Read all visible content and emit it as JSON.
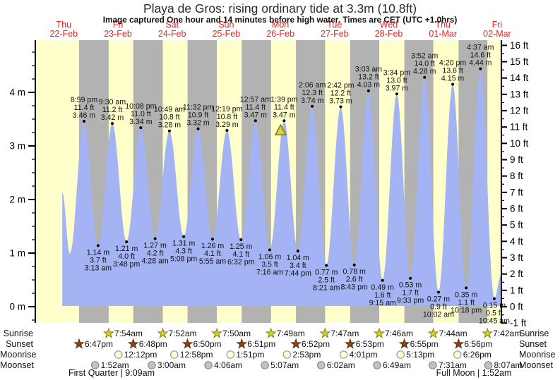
{
  "header": {
    "title": "Playa de Gros: rising ordinary tide at 3.3m (10.8ft)",
    "subtitle": "Image captured One hour and 14 minutes before high water. Times are CET (UTC +1.0hrs)"
  },
  "colors": {
    "background": "#ffffff",
    "day_band": "#ffffcc",
    "night_band": "#b2b2b2",
    "tide_fill": "#a3b3f3",
    "day_label_red": "#ee2222",
    "axis_black": "#000000",
    "marker_fill": "#d4d63c",
    "marker_stroke": "#7c7c00",
    "sunrise_star_fill": "#d2d22a",
    "sunrise_star_stroke": "#84840a",
    "sunset_star_fill": "#8b4513",
    "sunset_star_stroke": "#5c2d0a",
    "moonrise_circle_fill": "#ffffd6",
    "moonrise_circle_stroke": "#999999",
    "moonset_circle_fill": "#c2c2c2",
    "moonset_circle_stroke": "#8c8c8c"
  },
  "days": [
    {
      "name": "Thu",
      "date": "22-Feb"
    },
    {
      "name": "Fri",
      "date": "23-Feb"
    },
    {
      "name": "Sat",
      "date": "24-Feb"
    },
    {
      "name": "Sun",
      "date": "25-Feb"
    },
    {
      "name": "Mon",
      "date": "26-Feb"
    },
    {
      "name": "Tue",
      "date": "27-Feb"
    },
    {
      "name": "Wed",
      "date": "28-Feb"
    },
    {
      "name": "Thu",
      "date": "01-Mar"
    },
    {
      "name": "Fri",
      "date": "02-Mar"
    }
  ],
  "axes": {
    "left_unit": "m",
    "right_unit": "ft",
    "left_labels": [
      "4 m",
      "3 m",
      "2 m",
      "1 m",
      "0 m"
    ],
    "right_labels": [
      "16 ft",
      "15 ft",
      "14 ft",
      "13 ft",
      "12 ft",
      "11 ft",
      "10 ft",
      "9 ft",
      "8 ft",
      "7 ft",
      "6 ft",
      "5 ft",
      "4 ft",
      "3 ft",
      "2 ft",
      "1 ft",
      "0 ft",
      "-1 ft"
    ]
  },
  "chart_data": {
    "type": "area",
    "title": "Playa de Gros: rising ordinary tide at 3.3m (10.8ft)",
    "x_range": "Thu 22-Feb 00:00 CET to Fri 02-Mar ~14:00 CET",
    "y_range_left_m": [
      -0.3,
      5.0
    ],
    "y_range_right_ft": [
      -1,
      16
    ],
    "grid": false,
    "legend": false,
    "tide_events": [
      {
        "day": 0,
        "time": "11:20 am",
        "h": 2.15,
        "type": "start",
        "labeled": false,
        "estimated": true
      },
      {
        "day": 0,
        "time": "2:40 pm",
        "h": 0.98,
        "type": "low",
        "labeled": false,
        "estimated": true
      },
      {
        "day": 0,
        "time": "8:59 pm",
        "m": "3.46 m",
        "ft": "11.4 ft",
        "type": "high",
        "labeled": true
      },
      {
        "day": 1,
        "time": "3:13 am",
        "m": "1.14 m",
        "ft": "3.7 ft",
        "type": "low",
        "labeled": true
      },
      {
        "day": 1,
        "time": "9:30 am",
        "m": "3.42 m",
        "ft": "11.2 ft",
        "type": "high",
        "labeled": true
      },
      {
        "day": 1,
        "time": "3:48 pm",
        "m": "1.21 m",
        "ft": "4.0 ft",
        "type": "low",
        "labeled": true
      },
      {
        "day": 1,
        "time": "10:08 pm",
        "m": "3.34 m",
        "ft": "11.0 ft",
        "type": "high",
        "labeled": true
      },
      {
        "day": 2,
        "time": "4:28 am",
        "m": "1.27 m",
        "ft": "4.2 ft",
        "type": "low",
        "labeled": true
      },
      {
        "day": 2,
        "time": "10:49 am",
        "m": "3.28 m",
        "ft": "10.8 ft",
        "type": "high",
        "labeled": true
      },
      {
        "day": 2,
        "time": "5:08 pm",
        "m": "1.31 m",
        "ft": "4.3 ft",
        "type": "low",
        "labeled": true
      },
      {
        "day": 2,
        "time": "11:32 pm",
        "m": "3.32 m",
        "ft": "10.9 ft",
        "type": "high",
        "labeled": true
      },
      {
        "day": 3,
        "time": "5:55 am",
        "m": "1.26 m",
        "ft": "4.1 ft",
        "type": "low",
        "labeled": true
      },
      {
        "day": 3,
        "time": "12:19 pm",
        "m": "3.29 m",
        "ft": "10.8 ft",
        "type": "high",
        "labeled": true
      },
      {
        "day": 3,
        "time": "6:32 pm",
        "m": "1.25 m",
        "ft": "4.1 ft",
        "type": "low",
        "labeled": true
      },
      {
        "day": 4,
        "time": "12:57 am",
        "m": "3.47 m",
        "ft": "11.4 ft",
        "type": "high",
        "labeled": true
      },
      {
        "day": 4,
        "time": "7:16 am",
        "m": "1.06 m",
        "ft": "3.5 ft",
        "type": "low",
        "labeled": true
      },
      {
        "day": 4,
        "time": "1:39 pm",
        "m": "3.47 m",
        "ft": "11.4 ft",
        "type": "high",
        "labeled": true,
        "marker": true
      },
      {
        "day": 4,
        "time": "7:44 pm",
        "m": "1.04 m",
        "ft": "3.4 ft",
        "type": "low",
        "labeled": true
      },
      {
        "day": 5,
        "time": "2:06 am",
        "m": "3.74 m",
        "ft": "12.3 ft",
        "type": "high",
        "labeled": true
      },
      {
        "day": 5,
        "time": "8:21 am",
        "m": "0.77 m",
        "ft": "2.5 ft",
        "type": "low",
        "labeled": true
      },
      {
        "day": 5,
        "time": "2:42 pm",
        "m": "3.73 m",
        "ft": "12.2 ft",
        "type": "high",
        "labeled": true
      },
      {
        "day": 5,
        "time": "8:43 pm",
        "m": "0.78 m",
        "ft": "2.6 ft",
        "type": "low",
        "labeled": true
      },
      {
        "day": 6,
        "time": "3:03 am",
        "m": "4.03 m",
        "ft": "13.2 ft",
        "type": "high",
        "labeled": true
      },
      {
        "day": 6,
        "time": "9:15 am",
        "m": "0.49 m",
        "ft": "1.6 ft",
        "type": "low",
        "labeled": true
      },
      {
        "day": 6,
        "time": "3:34 pm",
        "m": "3.97 m",
        "ft": "13.0 ft",
        "type": "high",
        "labeled": true
      },
      {
        "day": 6,
        "time": "9:33 pm",
        "m": "0.53 m",
        "ft": "1.7 ft",
        "type": "low",
        "labeled": true
      },
      {
        "day": 7,
        "time": "3:52 am",
        "m": "4.28 m",
        "ft": "14.0 ft",
        "type": "high",
        "labeled": true
      },
      {
        "day": 7,
        "time": "10:02 am",
        "m": "0.27 m",
        "ft": "0.9 ft",
        "type": "low",
        "labeled": true
      },
      {
        "day": 7,
        "time": "4:20 pm",
        "m": "4.15 m",
        "ft": "13.6 ft",
        "type": "high",
        "labeled": true
      },
      {
        "day": 7,
        "time": "10:18 pm",
        "m": "0.35 m",
        "ft": "1.1 ft",
        "type": "low",
        "labeled": true
      },
      {
        "day": 8,
        "time": "4:37 am",
        "m": "4.44 m",
        "ft": "14.6 ft",
        "type": "high",
        "labeled": true
      },
      {
        "day": 8,
        "time": "10:45 am",
        "m": "0.15 m",
        "ft": "0.5 ft",
        "type": "low",
        "labeled": true
      },
      {
        "day": 8,
        "time": "1:50 pm",
        "h": 0.6,
        "type": "end",
        "labeled": false,
        "estimated": true
      }
    ]
  },
  "sun_moon": {
    "rows": [
      {
        "label": "Sunrise",
        "icon": "sunrise-star",
        "entries": [
          {
            "day": 1,
            "time": "7:54am"
          },
          {
            "day": 2,
            "time": "7:52am"
          },
          {
            "day": 3,
            "time": "7:50am"
          },
          {
            "day": 4,
            "time": "7:49am"
          },
          {
            "day": 5,
            "time": "7:47am"
          },
          {
            "day": 6,
            "time": "7:46am"
          },
          {
            "day": 7,
            "time": "7:44am"
          },
          {
            "day": 8,
            "time": "7:42am"
          }
        ]
      },
      {
        "label": "Sunset",
        "icon": "sunset-star",
        "entries": [
          {
            "day": 0,
            "time": "6:47pm"
          },
          {
            "day": 1,
            "time": "6:48pm"
          },
          {
            "day": 2,
            "time": "6:50pm"
          },
          {
            "day": 3,
            "time": "6:51pm"
          },
          {
            "day": 4,
            "time": "6:52pm"
          },
          {
            "day": 5,
            "time": "6:53pm"
          },
          {
            "day": 6,
            "time": "6:55pm"
          },
          {
            "day": 7,
            "time": "6:56pm"
          }
        ]
      },
      {
        "label": "Moonrise",
        "icon": "moonrise-circle",
        "entries": [
          {
            "day": 1,
            "time": "12:12pm"
          },
          {
            "day": 2,
            "time": "12:58pm"
          },
          {
            "day": 3,
            "time": "1:51pm"
          },
          {
            "day": 4,
            "time": "2:53pm"
          },
          {
            "day": 5,
            "time": "4:01pm"
          },
          {
            "day": 6,
            "time": "5:13pm"
          },
          {
            "day": 7,
            "time": "6:26pm"
          }
        ]
      },
      {
        "label": "Moonset",
        "icon": "moonset-circle",
        "entries": [
          {
            "day": 1,
            "time": "1:52am"
          },
          {
            "day": 2,
            "time": "3:00am"
          },
          {
            "day": 3,
            "time": "4:06am"
          },
          {
            "day": 4,
            "time": "5:07am"
          },
          {
            "day": 5,
            "time": "6:02am"
          },
          {
            "day": 6,
            "time": "6:49am"
          },
          {
            "day": 7,
            "time": "7:31am"
          },
          {
            "day": 8,
            "time": "8:07am"
          }
        ]
      }
    ]
  },
  "moon_phases": [
    {
      "text": "First Quarter | 9:09am",
      "day": 1,
      "time": "9:09am"
    },
    {
      "text": "Full Moon | 1:52am",
      "day": 8,
      "time": "1:52am"
    }
  ]
}
